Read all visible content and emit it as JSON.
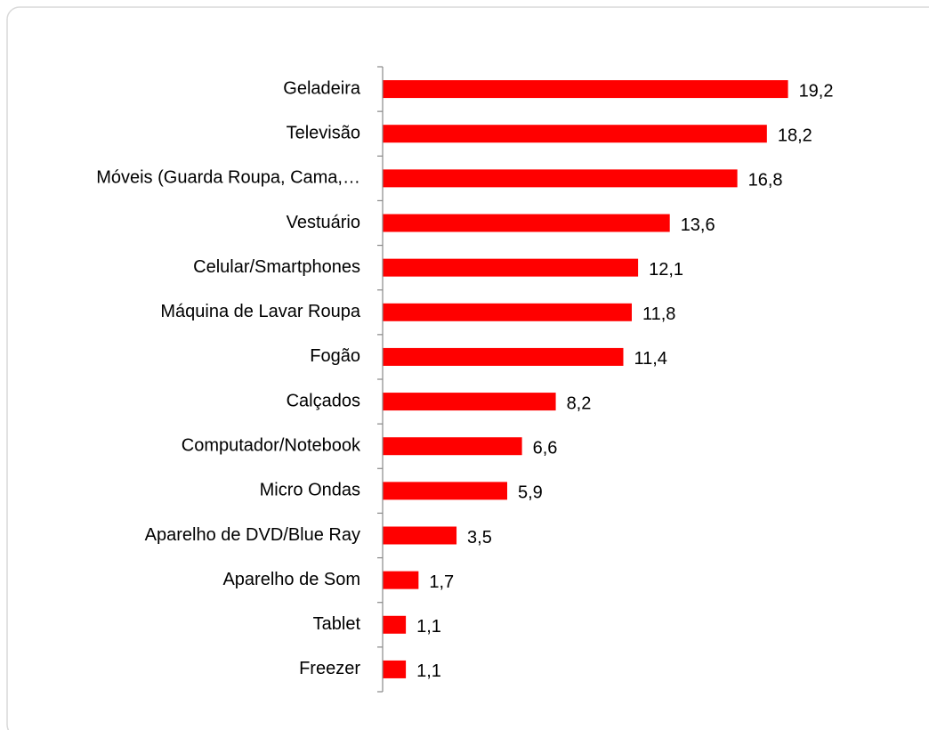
{
  "chart_data": {
    "type": "bar",
    "orientation": "horizontal",
    "categories": [
      "Geladeira",
      "Televisão",
      "Móveis (Guarda Roupa, Cama,…",
      "Vestuário",
      "Celular/Smartphones",
      "Máquina de Lavar Roupa",
      "Fogão",
      "Calçados",
      "Computador/Notebook",
      "Micro Ondas",
      "Aparelho de DVD/Blue Ray",
      "Aparelho de Som",
      "Tablet",
      "Freezer"
    ],
    "values": [
      19.2,
      18.2,
      16.8,
      13.6,
      12.1,
      11.8,
      11.4,
      8.2,
      6.6,
      5.9,
      3.5,
      1.7,
      1.1,
      1.1
    ],
    "value_labels": [
      "19,2",
      "18,2",
      "16,8",
      "13,6",
      "12,1",
      "11,8",
      "11,4",
      "8,2",
      "6,6",
      "5,9",
      "3,5",
      "1,7",
      "1,1",
      "1,1"
    ],
    "color": "#ff0000",
    "xlim": [
      0,
      22
    ]
  }
}
